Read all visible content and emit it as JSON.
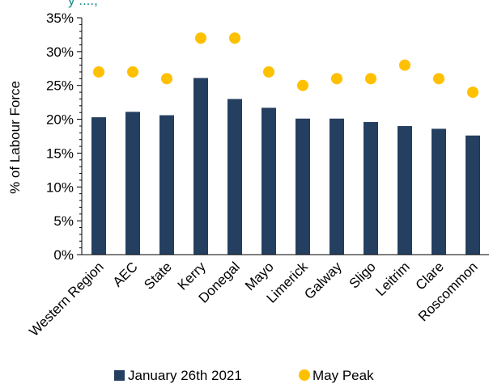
{
  "chart_data": {
    "type": "bar",
    "title": "",
    "xlabel": "",
    "ylabel": "% of Labour Force",
    "ylim": [
      0,
      35
    ],
    "yticks": [
      "0%",
      "5%",
      "10%",
      "15%",
      "20%",
      "25%",
      "30%",
      "35%"
    ],
    "ytick_values": [
      0,
      5,
      10,
      15,
      20,
      25,
      30,
      35
    ],
    "categories": [
      "Western Region",
      "AEC",
      "State",
      "Kerry",
      "Donegal",
      "Mayo",
      "Limerick",
      "Galway",
      "Sligo",
      "Leitrim",
      "Clare",
      "Roscommon"
    ],
    "series": [
      {
        "name": "January 26th 2021",
        "type": "bar",
        "color": "#243f60",
        "values": [
          20.3,
          21.1,
          20.6,
          26.1,
          23.0,
          21.7,
          20.1,
          20.1,
          19.6,
          19.0,
          18.6,
          17.6
        ]
      },
      {
        "name": "May Peak",
        "type": "scatter",
        "color": "#ffc000",
        "values": [
          27,
          27,
          26,
          32,
          32,
          27,
          25,
          26,
          26,
          28,
          26,
          24
        ]
      }
    ],
    "grid": false,
    "legend": "bottom"
  },
  "header": {
    "partial_title": "y ....,  "
  }
}
